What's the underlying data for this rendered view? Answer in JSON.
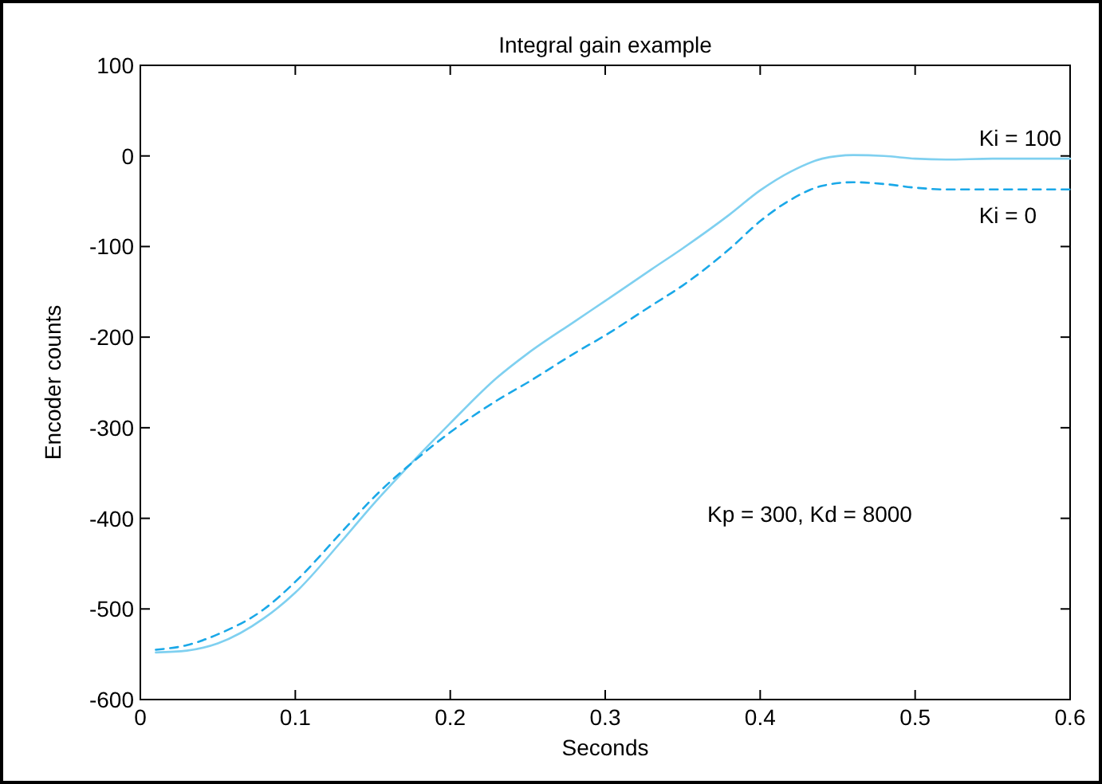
{
  "chart_data": {
    "type": "line",
    "title": "Integral gain example",
    "xlabel": "Seconds",
    "ylabel": "Encoder counts",
    "xlim": [
      0,
      0.6
    ],
    "xticks": [
      0,
      0.1,
      0.2,
      0.3,
      0.4,
      0.5,
      0.6
    ],
    "ylim": [
      -600,
      100
    ],
    "yticks": [
      -600,
      -500,
      -400,
      -300,
      -200,
      -100,
      0,
      100
    ],
    "grid": false,
    "annotations": [
      "Kp = 300, Kd = 8000"
    ],
    "series": [
      {
        "name": "Ki = 100",
        "color": "#7fd0f0",
        "line_style": "solid",
        "x": [
          0.01,
          0.03,
          0.05,
          0.08,
          0.1,
          0.13,
          0.15,
          0.18,
          0.2,
          0.23,
          0.25,
          0.28,
          0.3,
          0.33,
          0.35,
          0.38,
          0.4,
          0.42,
          0.44,
          0.46,
          0.48,
          0.5,
          0.52,
          0.55,
          0.6
        ],
        "values": [
          -548,
          -546,
          -538,
          -510,
          -482,
          -425,
          -385,
          -330,
          -295,
          -245,
          -218,
          -183,
          -160,
          -125,
          -102,
          -65,
          -38,
          -17,
          -3,
          1,
          0,
          -3,
          -4,
          -3,
          -3
        ]
      },
      {
        "name": "Ki = 0",
        "color": "#1aa8e8",
        "line_style": "dashed",
        "x": [
          0.01,
          0.03,
          0.05,
          0.08,
          0.1,
          0.13,
          0.15,
          0.18,
          0.2,
          0.23,
          0.25,
          0.28,
          0.3,
          0.33,
          0.35,
          0.38,
          0.4,
          0.42,
          0.44,
          0.46,
          0.48,
          0.5,
          0.52,
          0.55,
          0.6
        ],
        "values": [
          -545,
          -540,
          -528,
          -500,
          -470,
          -415,
          -378,
          -332,
          -305,
          -270,
          -250,
          -218,
          -198,
          -165,
          -143,
          -103,
          -72,
          -48,
          -33,
          -29,
          -31,
          -35,
          -37,
          -37,
          -37
        ]
      }
    ]
  }
}
